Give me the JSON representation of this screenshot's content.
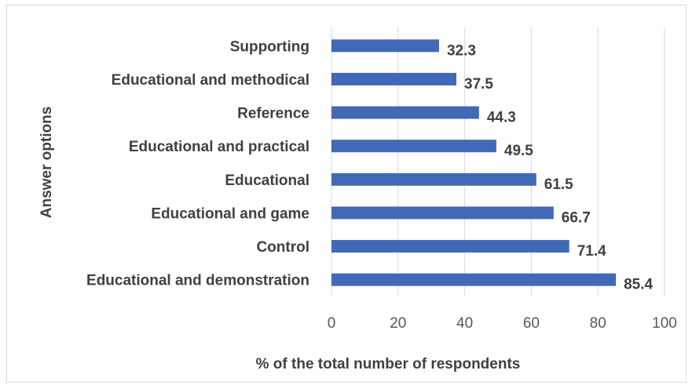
{
  "chart_data": {
    "type": "bar",
    "orientation": "horizontal",
    "categories": [
      "Educational and demonstration",
      "Control",
      "Educational and game",
      "Educational",
      "Educational and practical",
      "Reference",
      "Educational and methodical",
      "Supporting"
    ],
    "values": [
      85.4,
      71.4,
      66.7,
      61.5,
      49.5,
      44.3,
      37.5,
      32.3
    ],
    "value_labels": [
      "85.4",
      "71.4",
      "66.7",
      "61.5",
      "49.5",
      "44.3",
      "37.5",
      "32.3"
    ],
    "xlabel": "% of the total number of respondents",
    "ylabel": "Answer options",
    "xlim": [
      0,
      100
    ],
    "x_ticks": [
      "0",
      "20",
      "40",
      "60",
      "80",
      "100"
    ],
    "grid": "vertical",
    "bar_color": "#4169b8",
    "legend": "none"
  }
}
